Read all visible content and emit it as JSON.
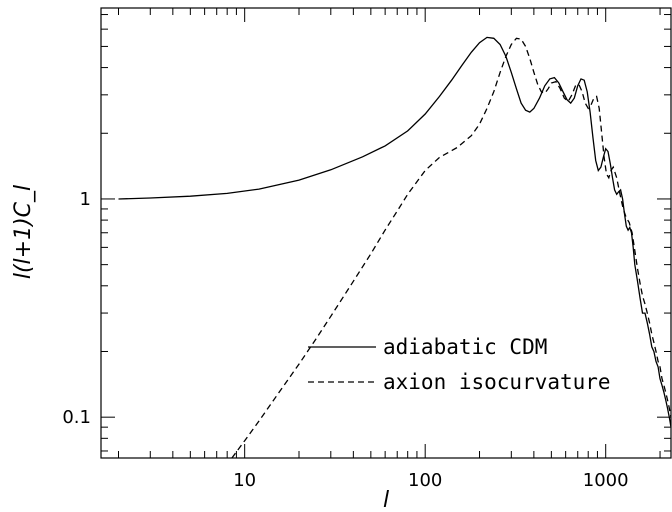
{
  "chart_data": {
    "type": "line",
    "title": "",
    "xlabel": "l",
    "ylabel": "l(l+1)C_l",
    "x_scale": "log",
    "y_scale": "log",
    "xlim": [
      1.6,
      2300
    ],
    "ylim": [
      0.065,
      7.5
    ],
    "grid": false,
    "legend_position": "lower-right",
    "x_ticks": [
      {
        "value": 10,
        "label": "10"
      },
      {
        "value": 100,
        "label": "100"
      },
      {
        "value": 1000,
        "label": "1000"
      }
    ],
    "y_ticks": [
      {
        "value": 0.1,
        "label": "0.1"
      },
      {
        "value": 1,
        "label": "1"
      }
    ],
    "series": [
      {
        "name": "adiabatic CDM",
        "style": "solid",
        "x": [
          2,
          3,
          5,
          8,
          12,
          20,
          30,
          45,
          60,
          80,
          100,
          120,
          140,
          160,
          180,
          200,
          220,
          240,
          260,
          280,
          300,
          320,
          340,
          360,
          380,
          400,
          430,
          460,
          490,
          520,
          550,
          580,
          610,
          640,
          670,
          700,
          730,
          760,
          790,
          820,
          850,
          880,
          910,
          940,
          970,
          1000,
          1030,
          1060,
          1090,
          1120,
          1150,
          1180,
          1210,
          1240,
          1270,
          1300,
          1330,
          1360,
          1390,
          1420,
          1450,
          1500,
          1550,
          1600,
          1650,
          1700,
          1750,
          1800,
          1850,
          1900,
          1950,
          2000,
          2050,
          2100,
          2150,
          2200,
          2250,
          2300
        ],
        "y": [
          1.0,
          1.01,
          1.03,
          1.06,
          1.11,
          1.22,
          1.36,
          1.56,
          1.75,
          2.05,
          2.45,
          2.95,
          3.5,
          4.1,
          4.7,
          5.2,
          5.5,
          5.45,
          5.1,
          4.5,
          3.8,
          3.2,
          2.75,
          2.55,
          2.5,
          2.6,
          2.9,
          3.3,
          3.55,
          3.6,
          3.4,
          3.1,
          2.85,
          2.75,
          2.9,
          3.3,
          3.55,
          3.5,
          3.1,
          2.5,
          1.9,
          1.5,
          1.35,
          1.4,
          1.55,
          1.7,
          1.65,
          1.45,
          1.25,
          1.1,
          1.05,
          1.08,
          1.1,
          1.0,
          0.86,
          0.75,
          0.72,
          0.74,
          0.7,
          0.6,
          0.5,
          0.42,
          0.35,
          0.3,
          0.3,
          0.27,
          0.24,
          0.21,
          0.2,
          0.18,
          0.17,
          0.15,
          0.14,
          0.13,
          0.12,
          0.11,
          0.1,
          0.09
        ]
      },
      {
        "name": "axion isocurvature",
        "style": "dashed",
        "x": [
          8.5,
          10,
          12,
          15,
          20,
          25,
          30,
          40,
          50,
          60,
          70,
          80,
          100,
          120,
          150,
          180,
          200,
          220,
          240,
          260,
          280,
          300,
          320,
          340,
          360,
          380,
          400,
          420,
          440,
          460,
          480,
          500,
          530,
          560,
          590,
          620,
          650,
          680,
          710,
          740,
          770,
          800,
          830,
          860,
          890,
          920,
          950,
          980,
          1010,
          1040,
          1070,
          1100,
          1150,
          1200,
          1250,
          1300,
          1350,
          1400,
          1450,
          1500,
          1550,
          1600,
          1650,
          1700,
          1750,
          1800,
          1850,
          1900,
          1950,
          2000,
          2050,
          2100,
          2150,
          2200,
          2250,
          2300
        ],
        "y": [
          0.065,
          0.078,
          0.096,
          0.125,
          0.175,
          0.23,
          0.29,
          0.42,
          0.56,
          0.72,
          0.88,
          1.05,
          1.35,
          1.55,
          1.72,
          1.95,
          2.2,
          2.6,
          3.1,
          3.8,
          4.5,
          5.1,
          5.45,
          5.4,
          5.0,
          4.4,
          3.8,
          3.35,
          3.1,
          3.05,
          3.2,
          3.4,
          3.45,
          3.2,
          2.9,
          2.8,
          3.0,
          3.3,
          3.35,
          3.1,
          2.75,
          2.6,
          2.7,
          2.9,
          2.95,
          2.6,
          2.0,
          1.55,
          1.3,
          1.25,
          1.35,
          1.4,
          1.25,
          1.05,
          0.9,
          0.82,
          0.78,
          0.7,
          0.58,
          0.48,
          0.41,
          0.36,
          0.33,
          0.3,
          0.27,
          0.24,
          0.22,
          0.2,
          0.18,
          0.17,
          0.15,
          0.14,
          0.13,
          0.12,
          0.11,
          0.1
        ]
      }
    ]
  }
}
